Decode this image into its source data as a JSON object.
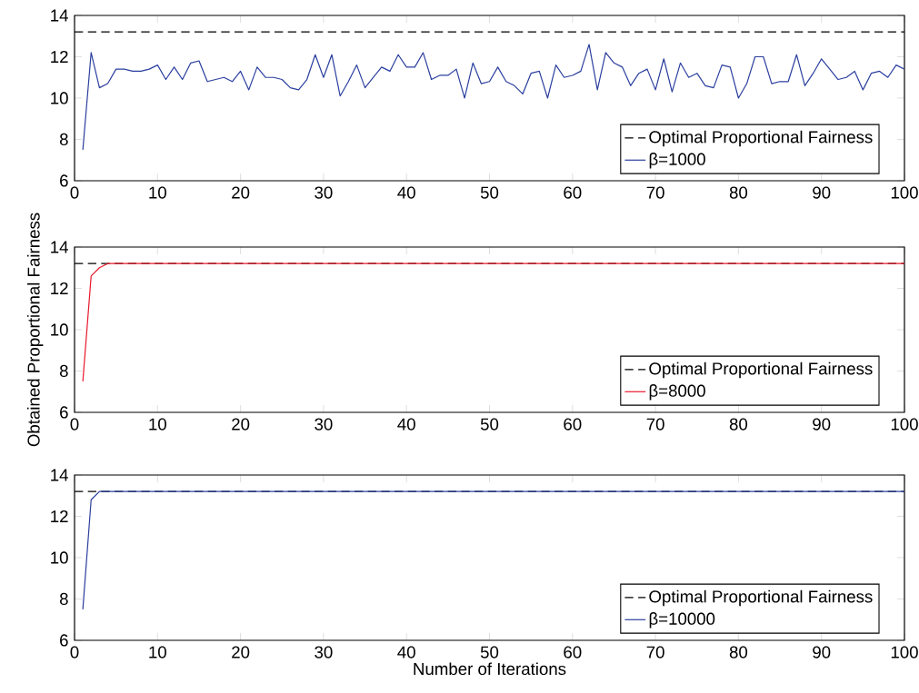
{
  "chart_data": [
    {
      "type": "line",
      "x": [
        1,
        2,
        3,
        4,
        5,
        6,
        7,
        8,
        9,
        10,
        11,
        12,
        13,
        14,
        15,
        16,
        17,
        18,
        19,
        20,
        21,
        22,
        23,
        24,
        25,
        26,
        27,
        28,
        29,
        30,
        31,
        32,
        33,
        34,
        35,
        36,
        37,
        38,
        39,
        40,
        41,
        42,
        43,
        44,
        45,
        46,
        47,
        48,
        49,
        50,
        51,
        52,
        53,
        54,
        55,
        56,
        57,
        58,
        59,
        60,
        61,
        62,
        63,
        64,
        65,
        66,
        67,
        68,
        69,
        70,
        71,
        72,
        73,
        74,
        75,
        76,
        77,
        78,
        79,
        80,
        81,
        82,
        83,
        84,
        85,
        86,
        87,
        88,
        89,
        90,
        91,
        92,
        93,
        94,
        95,
        96,
        97,
        98,
        99,
        100
      ],
      "xlim": [
        0,
        100
      ],
      "ylim": [
        6,
        14
      ],
      "xticks": [
        0,
        10,
        20,
        30,
        40,
        50,
        60,
        70,
        80,
        90,
        100
      ],
      "yticks": [
        6,
        8,
        10,
        12,
        14
      ],
      "legend": "bottom right",
      "grid": false,
      "line_style": "solid",
      "ref_lines": [
        {
          "axis": "y",
          "value": 13.2,
          "label": "Optimal Proportional Fairness",
          "color": "#000000",
          "line_style": "dashed"
        }
      ],
      "series": [
        {
          "name": "β=1000",
          "color": "#2b3f9e",
          "values": [
            7.5,
            12.2,
            10.5,
            10.7,
            11.4,
            11.4,
            11.3,
            11.3,
            11.4,
            11.6,
            10.9,
            11.5,
            10.9,
            11.7,
            11.8,
            10.8,
            10.9,
            11.0,
            10.8,
            11.3,
            10.4,
            11.5,
            11.0,
            11.0,
            10.9,
            10.5,
            10.4,
            10.9,
            12.1,
            11.0,
            12.1,
            10.1,
            10.8,
            11.6,
            10.5,
            11.0,
            11.5,
            11.3,
            12.1,
            11.5,
            11.5,
            12.2,
            10.9,
            11.1,
            11.1,
            11.4,
            10.0,
            11.7,
            10.7,
            10.8,
            11.5,
            10.8,
            10.6,
            10.2,
            11.2,
            11.3,
            10.0,
            11.6,
            11.0,
            11.1,
            11.3,
            12.6,
            10.4,
            12.2,
            11.7,
            11.5,
            10.6,
            11.2,
            11.4,
            10.4,
            11.9,
            10.3,
            11.7,
            11.0,
            11.2,
            10.6,
            10.5,
            11.6,
            11.5,
            10.0,
            10.7,
            12.0,
            12.0,
            10.7,
            10.8,
            10.8,
            12.1,
            10.6,
            11.2,
            11.9,
            11.4,
            10.9,
            11.0,
            11.3,
            10.4,
            11.2,
            11.3,
            11.0,
            11.6,
            11.4
          ]
        }
      ]
    },
    {
      "type": "line",
      "x": [
        1,
        2,
        3,
        4,
        5,
        6,
        7,
        8,
        9,
        10,
        11,
        12,
        13,
        14,
        15,
        16,
        17,
        18,
        19,
        20,
        21,
        22,
        23,
        24,
        25,
        26,
        27,
        28,
        29,
        30,
        31,
        32,
        33,
        34,
        35,
        36,
        37,
        38,
        39,
        40,
        41,
        42,
        43,
        44,
        45,
        46,
        47,
        48,
        49,
        50,
        51,
        52,
        53,
        54,
        55,
        56,
        57,
        58,
        59,
        60,
        61,
        62,
        63,
        64,
        65,
        66,
        67,
        68,
        69,
        70,
        71,
        72,
        73,
        74,
        75,
        76,
        77,
        78,
        79,
        80,
        81,
        82,
        83,
        84,
        85,
        86,
        87,
        88,
        89,
        90,
        91,
        92,
        93,
        94,
        95,
        96,
        97,
        98,
        99,
        100
      ],
      "xlim": [
        0,
        100
      ],
      "ylim": [
        6,
        14
      ],
      "xticks": [
        0,
        10,
        20,
        30,
        40,
        50,
        60,
        70,
        80,
        90,
        100
      ],
      "yticks": [
        6,
        8,
        10,
        12,
        14
      ],
      "legend": "bottom right",
      "grid": false,
      "line_style": "solid",
      "ylabel": "Obtained Proportional Fairness",
      "ref_lines": [
        {
          "axis": "y",
          "value": 13.2,
          "label": "Optimal Proportional Fairness",
          "color": "#000000",
          "line_style": "dashed"
        }
      ],
      "series": [
        {
          "name": "β=8000",
          "color": "#e8182d",
          "values": [
            7.5,
            12.6,
            13.0,
            13.2,
            13.2,
            13.2,
            13.2,
            13.2,
            13.2,
            13.2,
            13.2,
            13.2,
            13.2,
            13.2,
            13.2,
            13.2,
            13.2,
            13.2,
            13.2,
            13.2,
            13.2,
            13.2,
            13.2,
            13.2,
            13.2,
            13.2,
            13.2,
            13.2,
            13.2,
            13.2,
            13.2,
            13.2,
            13.2,
            13.2,
            13.2,
            13.2,
            13.2,
            13.2,
            13.2,
            13.2,
            13.2,
            13.2,
            13.2,
            13.2,
            13.2,
            13.2,
            13.2,
            13.2,
            13.2,
            13.2,
            13.2,
            13.2,
            13.2,
            13.2,
            13.2,
            13.2,
            13.2,
            13.2,
            13.2,
            13.2,
            13.2,
            13.2,
            13.2,
            13.2,
            13.2,
            13.2,
            13.2,
            13.2,
            13.2,
            13.2,
            13.2,
            13.2,
            13.2,
            13.2,
            13.2,
            13.2,
            13.2,
            13.2,
            13.2,
            13.2,
            13.2,
            13.2,
            13.2,
            13.2,
            13.2,
            13.2,
            13.2,
            13.2,
            13.2,
            13.2,
            13.2,
            13.2,
            13.2,
            13.2,
            13.2,
            13.2,
            13.2,
            13.2,
            13.2,
            13.2
          ]
        }
      ]
    },
    {
      "type": "line",
      "x": [
        1,
        2,
        3,
        4,
        5,
        6,
        7,
        8,
        9,
        10,
        11,
        12,
        13,
        14,
        15,
        16,
        17,
        18,
        19,
        20,
        21,
        22,
        23,
        24,
        25,
        26,
        27,
        28,
        29,
        30,
        31,
        32,
        33,
        34,
        35,
        36,
        37,
        38,
        39,
        40,
        41,
        42,
        43,
        44,
        45,
        46,
        47,
        48,
        49,
        50,
        51,
        52,
        53,
        54,
        55,
        56,
        57,
        58,
        59,
        60,
        61,
        62,
        63,
        64,
        65,
        66,
        67,
        68,
        69,
        70,
        71,
        72,
        73,
        74,
        75,
        76,
        77,
        78,
        79,
        80,
        81,
        82,
        83,
        84,
        85,
        86,
        87,
        88,
        89,
        90,
        91,
        92,
        93,
        94,
        95,
        96,
        97,
        98,
        99,
        100
      ],
      "xlim": [
        0,
        100
      ],
      "ylim": [
        6,
        14
      ],
      "xticks": [
        0,
        10,
        20,
        30,
        40,
        50,
        60,
        70,
        80,
        90,
        100
      ],
      "yticks": [
        6,
        8,
        10,
        12,
        14
      ],
      "legend": "bottom right",
      "grid": false,
      "line_style": "solid",
      "xlabel": "Number of Iterations",
      "ref_lines": [
        {
          "axis": "y",
          "value": 13.2,
          "label": "Optimal Proportional Fairness",
          "color": "#000000",
          "line_style": "dashed"
        }
      ],
      "series": [
        {
          "name": "β=10000",
          "color": "#2b3f9e",
          "values": [
            7.5,
            12.8,
            13.2,
            13.2,
            13.2,
            13.2,
            13.2,
            13.2,
            13.2,
            13.2,
            13.2,
            13.2,
            13.2,
            13.2,
            13.2,
            13.2,
            13.2,
            13.2,
            13.2,
            13.2,
            13.2,
            13.2,
            13.2,
            13.2,
            13.2,
            13.2,
            13.2,
            13.2,
            13.2,
            13.2,
            13.2,
            13.2,
            13.2,
            13.2,
            13.2,
            13.2,
            13.2,
            13.2,
            13.2,
            13.2,
            13.2,
            13.2,
            13.2,
            13.2,
            13.2,
            13.2,
            13.2,
            13.2,
            13.2,
            13.2,
            13.2,
            13.2,
            13.2,
            13.2,
            13.2,
            13.2,
            13.2,
            13.2,
            13.2,
            13.2,
            13.2,
            13.2,
            13.2,
            13.2,
            13.2,
            13.2,
            13.2,
            13.2,
            13.2,
            13.2,
            13.2,
            13.2,
            13.2,
            13.2,
            13.2,
            13.2,
            13.2,
            13.2,
            13.2,
            13.2,
            13.2,
            13.2,
            13.2,
            13.2,
            13.2,
            13.2,
            13.2,
            13.2,
            13.2,
            13.2,
            13.2,
            13.2,
            13.2,
            13.2,
            13.2,
            13.2,
            13.2,
            13.2,
            13.2,
            13.2
          ]
        }
      ]
    }
  ]
}
